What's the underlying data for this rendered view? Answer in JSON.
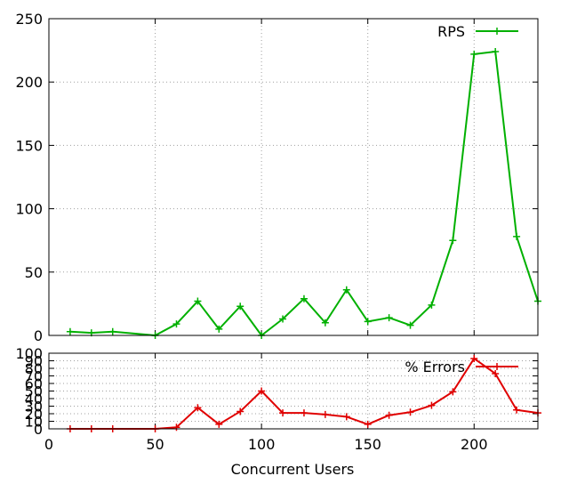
{
  "chart_data": [
    {
      "type": "line",
      "ylim": [
        0,
        250
      ],
      "yticks": [
        0,
        50,
        100,
        150,
        200,
        250
      ],
      "xlim": [
        0,
        230
      ],
      "xticks": [
        0,
        50,
        100,
        150,
        200
      ],
      "grid": true,
      "legend": "top-right",
      "series": [
        {
          "name": "RPS",
          "color": "#00b000",
          "x": [
            10,
            20,
            30,
            50,
            60,
            70,
            80,
            90,
            100,
            110,
            120,
            130,
            140,
            150,
            160,
            170,
            180,
            190,
            200,
            210,
            220,
            230
          ],
          "y": [
            3,
            2,
            3,
            0,
            9,
            27,
            5,
            23,
            0,
            13,
            29,
            10,
            36,
            11,
            14,
            8,
            24,
            75,
            222,
            224,
            78,
            27
          ]
        }
      ]
    },
    {
      "type": "line",
      "ylim": [
        0,
        100
      ],
      "yticks": [
        0,
        10,
        20,
        30,
        40,
        50,
        60,
        70,
        80,
        90,
        100
      ],
      "xlim": [
        0,
        230
      ],
      "xticks": [
        0,
        50,
        100,
        150,
        200
      ],
      "xlabel": "Concurrent Users",
      "grid": true,
      "legend": "top-right",
      "series": [
        {
          "name": "% Errors",
          "color": "#e00000",
          "x": [
            10,
            20,
            30,
            50,
            60,
            70,
            80,
            90,
            100,
            110,
            120,
            130,
            140,
            150,
            160,
            170,
            180,
            190,
            200,
            210,
            220,
            230
          ],
          "y": [
            0,
            0,
            0,
            0,
            2,
            28,
            6,
            23,
            50,
            21,
            21,
            19,
            16,
            6,
            18,
            22,
            31,
            49,
            93,
            73,
            25,
            21
          ]
        }
      ]
    }
  ]
}
